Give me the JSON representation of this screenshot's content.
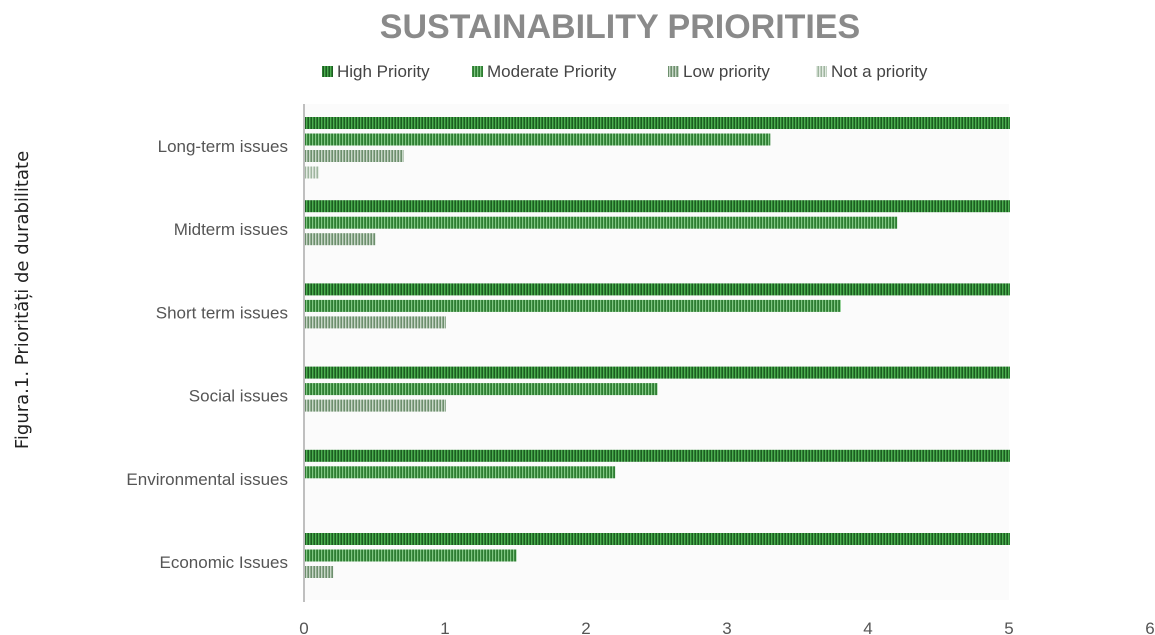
{
  "side_caption": "Figura.1. Priorități de durabilitate",
  "colors": {
    "high": "#2e7d32",
    "moderate": "#43a047",
    "low": "#8fae8f",
    "none": "#c2d1c2",
    "axis": "#bfbfbf",
    "title": "#8a8a8a"
  },
  "chart_data": {
    "type": "bar",
    "orientation": "horizontal",
    "title": "SUSTAINABILITY PRIORITIES",
    "xlabel": "",
    "ylabel": "",
    "xlim": [
      0,
      6
    ],
    "xticks": [
      "0",
      "1",
      "2",
      "3",
      "4",
      "5",
      "6"
    ],
    "grid": false,
    "legend_position": "top",
    "categories": [
      "Long-term issues",
      "Midterm issues",
      "Short term issues",
      "Social issues",
      "Environmental issues",
      "Economic Issues"
    ],
    "series": [
      {
        "name": "High Priority",
        "color_key": "high",
        "values": [
          5,
          5,
          5,
          5,
          5,
          5
        ]
      },
      {
        "name": "Moderate Priority",
        "color_key": "moderate",
        "values": [
          3.3,
          4.2,
          3.8,
          2.5,
          2.2,
          1.5
        ]
      },
      {
        "name": "Low priority",
        "color_key": "low",
        "values": [
          0.7,
          0.5,
          1.0,
          1.0,
          0,
          0.2
        ]
      },
      {
        "name": "Not a priority",
        "color_key": "none",
        "values": [
          0.1,
          0,
          0,
          0,
          0,
          0
        ]
      }
    ]
  }
}
